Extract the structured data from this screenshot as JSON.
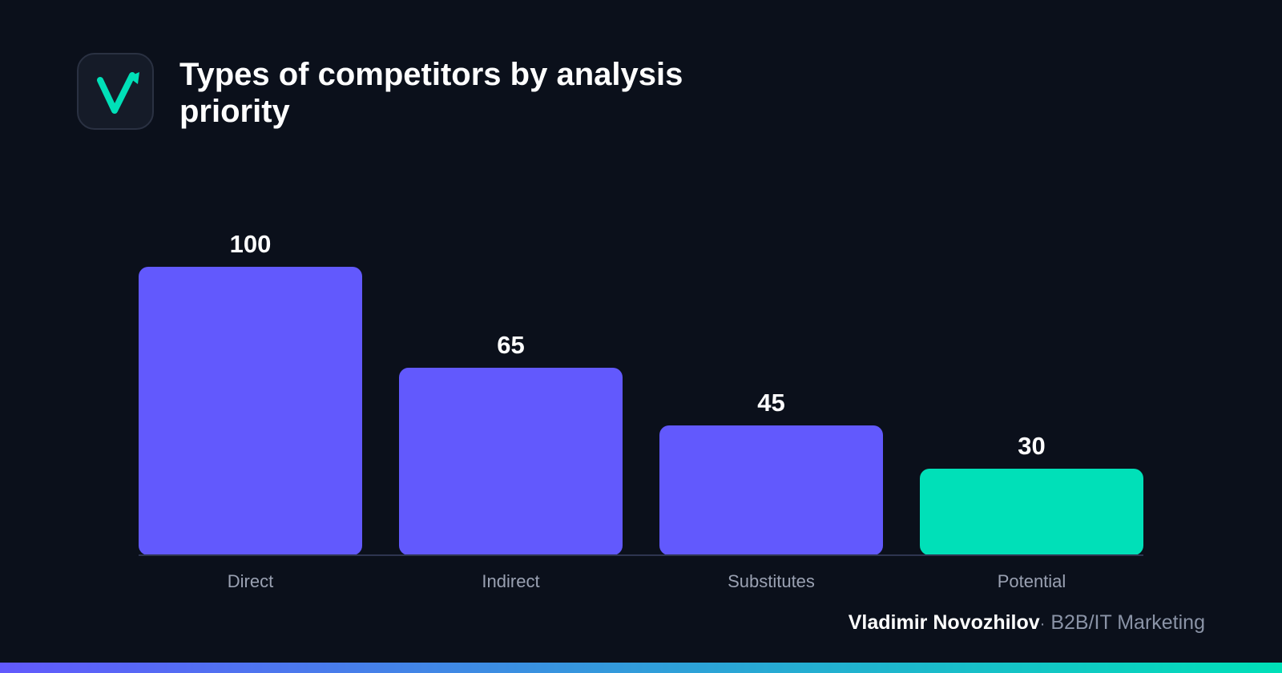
{
  "header": {
    "title": "Types of competitors by analysis priority",
    "logo_icon": "checkmark-arrow-icon"
  },
  "chart_data": {
    "type": "bar",
    "title": "Types of competitors by analysis priority",
    "categories": [
      "Direct",
      "Indirect",
      "Substitutes",
      "Potential"
    ],
    "values": [
      100,
      65,
      45,
      30
    ],
    "ylim": [
      0,
      100
    ],
    "grid": false,
    "legend": "none",
    "xlabel": "",
    "ylabel": "",
    "bar_colors": [
      "#6259fd",
      "#6259fd",
      "#6259fd",
      "#00e0b8"
    ]
  },
  "footer": {
    "author": "Vladimir Novozhilov",
    "separator": "·",
    "role": "B2B/IT Marketing"
  },
  "colors": {
    "background": "#0b101b",
    "primary_bar": "#6259fd",
    "accent_bar": "#00e0b8",
    "axis_line": "#2e3550",
    "category_text": "#9aa1b2",
    "gradient_start": "#6259fd",
    "gradient_end": "#00e0b8"
  }
}
